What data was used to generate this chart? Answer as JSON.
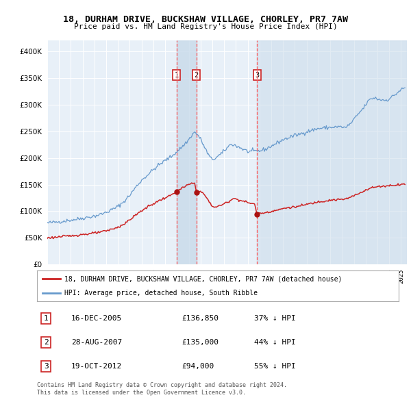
{
  "title": "18, DURHAM DRIVE, BUCKSHAW VILLAGE, CHORLEY, PR7 7AW",
  "subtitle": "Price paid vs. HM Land Registry's House Price Index (HPI)",
  "legend_line1": "18, DURHAM DRIVE, BUCKSHAW VILLAGE, CHORLEY, PR7 7AW (detached house)",
  "legend_line2": "HPI: Average price, detached house, South Ribble",
  "transactions": [
    {
      "num": 1,
      "date": "16-DEC-2005",
      "price": 136850,
      "price_str": "£136,850",
      "pct": "37%",
      "dir": "↓"
    },
    {
      "num": 2,
      "date": "28-AUG-2007",
      "price": 135000,
      "price_str": "£135,000",
      "pct": "44%",
      "dir": "↓"
    },
    {
      "num": 3,
      "date": "19-OCT-2012",
      "price": 94000,
      "price_str": "£94,000",
      "pct": "55%",
      "dir": "↓"
    }
  ],
  "transaction_dates_decimal": [
    2005.96,
    2007.65,
    2012.8
  ],
  "transaction_prices": [
    136850,
    135000,
    94000
  ],
  "note1": "Contains HM Land Registry data © Crown copyright and database right 2024.",
  "note2": "This data is licensed under the Open Government Licence v3.0.",
  "ylim": [
    0,
    420000
  ],
  "xlim_start": 1995.0,
  "xlim_end": 2025.5,
  "plot_bg": "#e8f0f8",
  "shade_color": "#c8daea",
  "grid_color": "#ffffff",
  "hpi_color": "#6699cc",
  "price_color": "#cc2222",
  "marker_color": "#aa1111",
  "vline_color": "#ff5555"
}
